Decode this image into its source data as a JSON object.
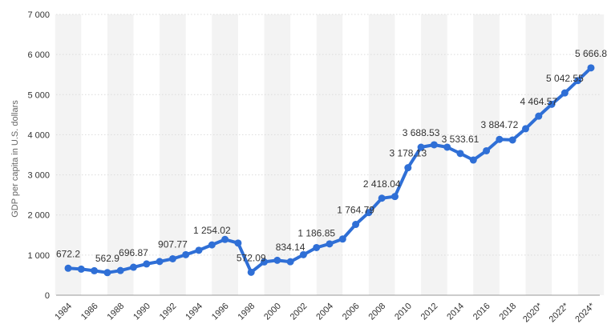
{
  "chart_data": {
    "type": "line",
    "title": "",
    "xlabel": "",
    "ylabel": "GDP per capita in U.S. dollars",
    "ylim": [
      0,
      7000
    ],
    "yticks": [
      0,
      1000,
      2000,
      3000,
      4000,
      5000,
      6000,
      7000
    ],
    "ytick_labels": [
      "0",
      "1 000",
      "2 000",
      "3 000",
      "4 000",
      "5 000",
      "6 000",
      "7 000"
    ],
    "xtick_labels": [
      "1984",
      "1986",
      "1988",
      "1990",
      "1992",
      "1994",
      "1996",
      "1998",
      "2000",
      "2002",
      "2004",
      "2006",
      "2008",
      "2010",
      "2012",
      "2014",
      "2016",
      "2018",
      "2020*",
      "2022*",
      "2024*"
    ],
    "grid": true,
    "line_color": "#2f6fd6",
    "band_color": "#f3f3f3",
    "x": [
      "1984",
      "1985",
      "1986",
      "1987",
      "1988",
      "1989",
      "1990",
      "1991",
      "1992",
      "1993",
      "1994",
      "1995",
      "1996",
      "1997",
      "1998",
      "1999",
      "2000",
      "2001",
      "2002",
      "2003",
      "2004",
      "2005",
      "2006",
      "2007",
      "2008",
      "2009",
      "2010",
      "2011",
      "2012",
      "2013",
      "2014",
      "2015",
      "2016",
      "2017",
      "2018",
      "2019",
      "2020*",
      "2021*",
      "2022*",
      "2023*",
      "2024*"
    ],
    "values": [
      672.2,
      650,
      610,
      562.9,
      615,
      696.87,
      780,
      840,
      907.77,
      1010,
      1120,
      1254.02,
      1390,
      1300,
      572.09,
      830,
      870,
      834.14,
      1010,
      1186.85,
      1280,
      1400,
      1764.79,
      2060,
      2418.04,
      2460,
      3178.13,
      3688.53,
      3750,
      3690,
      3533.61,
      3370,
      3600,
      3884.72,
      3870,
      4150,
      4464.57,
      4760,
      5042.55,
      5350,
      5666.8
    ],
    "data_labels": [
      {
        "index": 0,
        "text": "672.2"
      },
      {
        "index": 3,
        "text": "562.9"
      },
      {
        "index": 5,
        "text": "696.87"
      },
      {
        "index": 8,
        "text": "907.77"
      },
      {
        "index": 11,
        "text": "1 254.02"
      },
      {
        "index": 14,
        "text": "572.09"
      },
      {
        "index": 17,
        "text": "834.14"
      },
      {
        "index": 19,
        "text": "1 186.85"
      },
      {
        "index": 22,
        "text": "1 764.79"
      },
      {
        "index": 24,
        "text": "2 418.04"
      },
      {
        "index": 26,
        "text": "3 178.13"
      },
      {
        "index": 27,
        "text": "3 688.53"
      },
      {
        "index": 30,
        "text": "3 533.61"
      },
      {
        "index": 33,
        "text": "3 884.72"
      },
      {
        "index": 36,
        "text": "4 464.57"
      },
      {
        "index": 38,
        "text": "5 042.55"
      },
      {
        "index": 40,
        "text": "5 666.8"
      }
    ]
  }
}
